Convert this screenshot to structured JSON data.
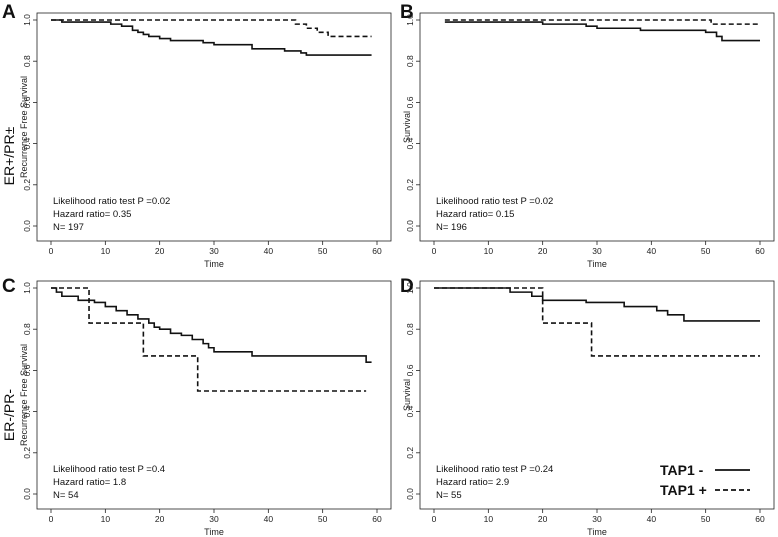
{
  "figure": {
    "row_labels": [
      "ER+/PR±",
      "ER-/PR-"
    ],
    "legend": {
      "entries": [
        {
          "label": "TAP1 -",
          "style": "solid"
        },
        {
          "label": "TAP1 +",
          "style": "dashed"
        }
      ]
    }
  },
  "chart_data": [
    {
      "id": "A",
      "panel_label": "A",
      "type": "line",
      "xlabel": "Time",
      "ylabel": "Recurrence Free Survival",
      "xlim": [
        0,
        60
      ],
      "ylim": [
        0,
        1
      ],
      "xticks": [
        0,
        10,
        20,
        30,
        40,
        50,
        60
      ],
      "yticks": [
        "0.0",
        "0.2",
        "0.4",
        "0.6",
        "0.8",
        "1.0"
      ],
      "stats": [
        "Likelihood ratio test P =0.02",
        "Hazard ratio= 0.35",
        "N= 197"
      ],
      "series": [
        {
          "name": "TAP1 -",
          "style": "solid",
          "x": [
            0,
            2,
            8,
            11,
            13,
            15,
            16,
            17,
            18,
            20,
            22,
            26,
            28,
            30,
            33,
            37,
            40,
            43,
            46,
            47,
            59
          ],
          "y": [
            1.0,
            0.99,
            0.99,
            0.98,
            0.97,
            0.95,
            0.94,
            0.93,
            0.92,
            0.91,
            0.9,
            0.9,
            0.89,
            0.88,
            0.88,
            0.86,
            0.86,
            0.85,
            0.84,
            0.83,
            0.83
          ]
        },
        {
          "name": "TAP1 +",
          "style": "dashed",
          "x": [
            0,
            43,
            45,
            47,
            49,
            51,
            59
          ],
          "y": [
            1.0,
            1.0,
            0.98,
            0.96,
            0.94,
            0.92,
            0.92
          ]
        }
      ]
    },
    {
      "id": "B",
      "panel_label": "B",
      "type": "line",
      "xlabel": "Time",
      "ylabel": "Survival",
      "xlim": [
        0,
        60
      ],
      "ylim": [
        0,
        1
      ],
      "xticks": [
        0,
        10,
        20,
        30,
        40,
        50,
        60
      ],
      "yticks": [
        "0.0",
        "0.2",
        "0.4",
        "0.6",
        "0.8",
        "1.0"
      ],
      "stats": [
        "Likelihood ratio test P =0.02",
        "Hazard ratio= 0.15",
        "N= 196"
      ],
      "series": [
        {
          "name": "TAP1 -",
          "style": "solid",
          "x": [
            2,
            15,
            20,
            25,
            28,
            30,
            35,
            38,
            45,
            50,
            52,
            53,
            60
          ],
          "y": [
            0.99,
            0.99,
            0.98,
            0.98,
            0.97,
            0.96,
            0.96,
            0.95,
            0.95,
            0.94,
            0.92,
            0.9,
            0.9
          ]
        },
        {
          "name": "TAP1 +",
          "style": "dashed",
          "x": [
            2,
            51,
            60
          ],
          "y": [
            1.0,
            0.98,
            0.98
          ]
        }
      ]
    },
    {
      "id": "C",
      "panel_label": "C",
      "type": "line",
      "xlabel": "Time",
      "ylabel": "Recurrence Free Survival",
      "xlim": [
        0,
        60
      ],
      "ylim": [
        0,
        1
      ],
      "xticks": [
        0,
        10,
        20,
        30,
        40,
        50,
        60
      ],
      "yticks": [
        "0.0",
        "0.2",
        "0.4",
        "0.6",
        "0.8",
        "1.0"
      ],
      "stats": [
        "Likelihood ratio test P =0.4",
        "Hazard ratio= 1.8",
        "N= 54"
      ],
      "series": [
        {
          "name": "TAP1 -",
          "style": "solid",
          "x": [
            0,
            1,
            2,
            5,
            8,
            10,
            12,
            14,
            16,
            18,
            19,
            20,
            22,
            24,
            26,
            28,
            29,
            30,
            37,
            58,
            59
          ],
          "y": [
            1.0,
            0.98,
            0.96,
            0.94,
            0.93,
            0.91,
            0.89,
            0.87,
            0.85,
            0.83,
            0.81,
            0.8,
            0.78,
            0.77,
            0.75,
            0.73,
            0.71,
            0.69,
            0.67,
            0.64,
            0.64
          ]
        },
        {
          "name": "TAP1 +",
          "style": "dashed",
          "x": [
            0,
            7,
            17,
            27,
            58
          ],
          "y": [
            1.0,
            0.83,
            0.67,
            0.5,
            0.5
          ]
        }
      ]
    },
    {
      "id": "D",
      "panel_label": "D",
      "type": "line",
      "xlabel": "Time",
      "ylabel": "Survival",
      "xlim": [
        0,
        60
      ],
      "ylim": [
        0,
        1
      ],
      "xticks": [
        0,
        10,
        20,
        30,
        40,
        50,
        60
      ],
      "yticks": [
        "0.0",
        "0.2",
        "0.4",
        "0.6",
        "0.8",
        "1.0"
      ],
      "stats": [
        "Likelihood ratio test P =0.24",
        "Hazard ratio= 2.9",
        "N= 55"
      ],
      "series": [
        {
          "name": "TAP1 -",
          "style": "solid",
          "x": [
            0,
            14,
            18,
            20,
            22,
            28,
            35,
            38,
            41,
            43,
            46,
            60
          ],
          "y": [
            1.0,
            0.98,
            0.96,
            0.94,
            0.94,
            0.93,
            0.91,
            0.91,
            0.89,
            0.87,
            0.84,
            0.84
          ]
        },
        {
          "name": "TAP1 +",
          "style": "dashed",
          "x": [
            0,
            20,
            29,
            60
          ],
          "y": [
            1.0,
            0.83,
            0.67,
            0.67
          ]
        }
      ]
    }
  ]
}
